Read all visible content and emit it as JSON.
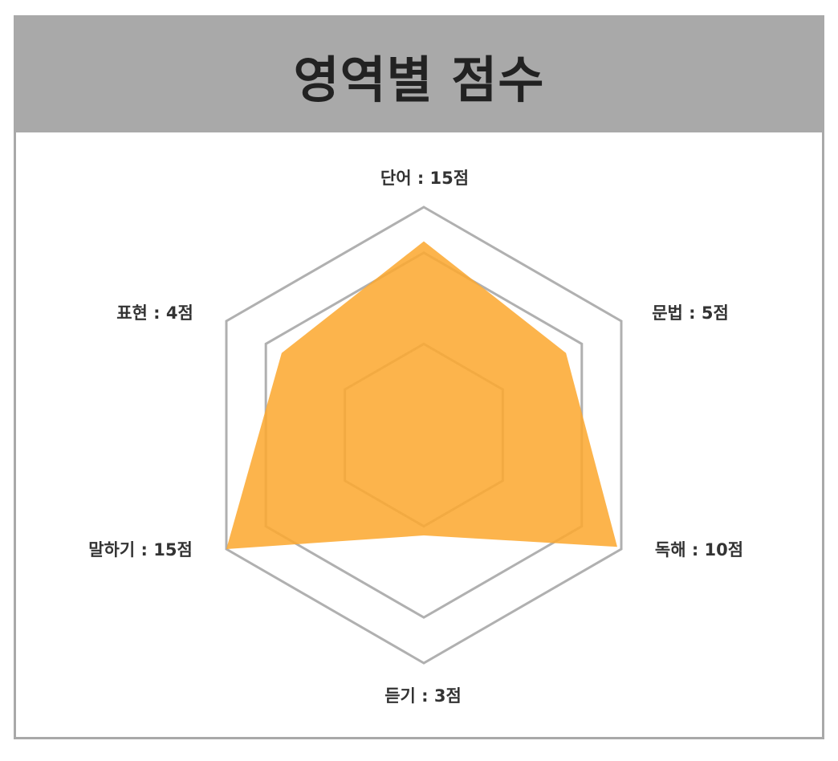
{
  "title": "영역별 점수",
  "colors": {
    "header_bg": "#a9a9a9",
    "grid": "#b0b0b0",
    "fill": "#fca931",
    "title_text": "#222222",
    "label_text": "#333333"
  },
  "chart_data": {
    "type": "radar",
    "title": "영역별 점수",
    "axes": [
      {
        "name": "단어",
        "value": 15,
        "label": "단어 : 15점"
      },
      {
        "name": "문법",
        "value": 5,
        "label": "문법 : 5점"
      },
      {
        "name": "독해",
        "value": 10,
        "label": "독해 : 10점"
      },
      {
        "name": "듣기",
        "value": 3,
        "label": "듣기 : 3점"
      },
      {
        "name": "말하기",
        "value": 15,
        "label": "말하기 : 15점"
      },
      {
        "name": "표현",
        "value": 4,
        "label": "표현 : 4점"
      }
    ],
    "plotted_fraction": [
      0.85,
      0.72,
      0.98,
      0.44,
      1.0,
      0.72
    ],
    "grid_levels": [
      0.4,
      0.8,
      1.0
    ],
    "grid": true,
    "legend": false
  }
}
